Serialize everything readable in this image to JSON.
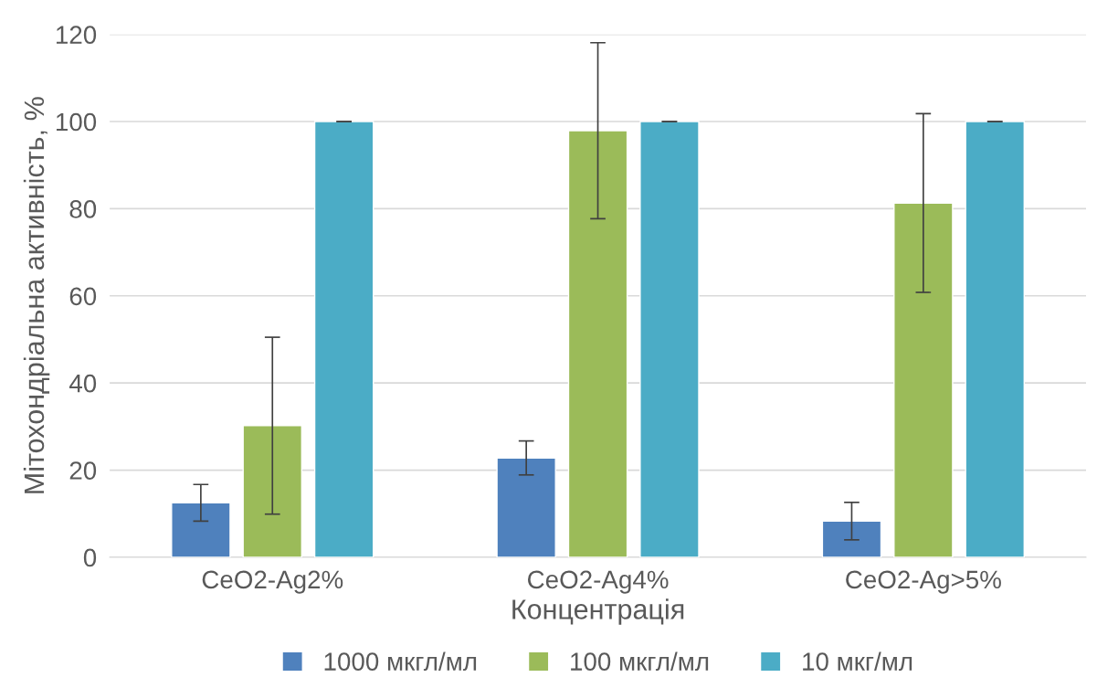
{
  "chart_data": {
    "type": "bar",
    "xlabel": "Концентрація",
    "ylabel": "Мітохондріальна активність, %",
    "categories": [
      "CeO2-Ag2%",
      "CeO2-Ag4%",
      "CeO2-Ag>5%"
    ],
    "series": [
      {
        "name": "1000 мкгл/мл",
        "color": "#4f81bd",
        "values": [
          12.5,
          22.8,
          8.3
        ],
        "errors": [
          4.2,
          3.9,
          4.3
        ]
      },
      {
        "name": "100 мкгл/мл",
        "color": "#9bbb59",
        "values": [
          30.2,
          97.9,
          81.3
        ],
        "errors": [
          20.3,
          20.2,
          20.5
        ]
      },
      {
        "name": "10 мкг/мл",
        "color": "#4bacc6",
        "values": [
          100,
          100,
          100
        ],
        "errors": [
          0,
          0,
          0
        ]
      }
    ],
    "ylim": [
      0,
      120
    ],
    "yticks": [
      0,
      20,
      40,
      60,
      80,
      100,
      120
    ],
    "grid": "y",
    "legend": "bottom"
  }
}
